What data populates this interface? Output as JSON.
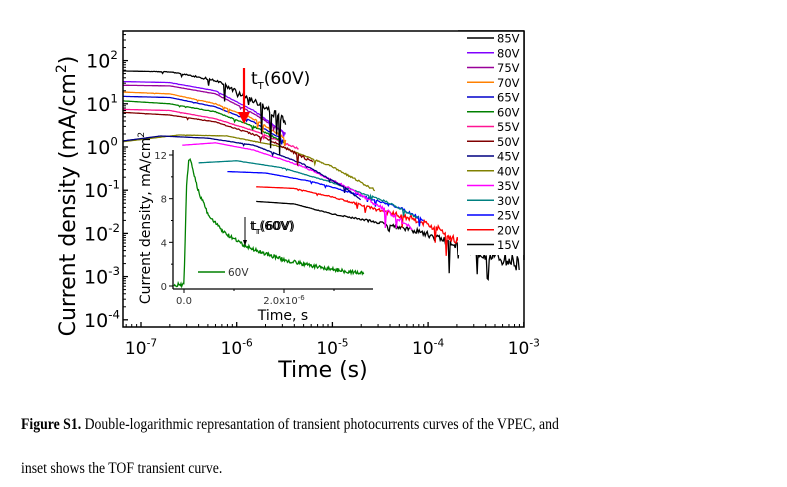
{
  "chart_data": [
    {
      "id": "main",
      "type": "line",
      "xscale": "log",
      "yscale": "log",
      "xlabel": "Time (s)",
      "ylabel": "Current density (mA/cm",
      "ylabel_sup": "2",
      "ylabel_tail": ")",
      "xlim": [
        5e-08,
        0.001
      ],
      "ylim": [
        6e-05,
        300.0
      ],
      "x_ticks": [
        {
          "base": "10",
          "exp": "-7",
          "value": 1e-07
        },
        {
          "base": "10",
          "exp": "-6",
          "value": 1e-06
        },
        {
          "base": "10",
          "exp": "-5",
          "value": 1e-05
        },
        {
          "base": "10",
          "exp": "-4",
          "value": 0.0001
        },
        {
          "base": "10",
          "exp": "-3",
          "value": 0.001
        }
      ],
      "y_ticks": [
        {
          "base": "10",
          "exp": "2",
          "value": 100
        },
        {
          "base": "10",
          "exp": "1",
          "value": 10
        },
        {
          "base": "10",
          "exp": "0",
          "value": 1
        },
        {
          "base": "10",
          "exp": "-1",
          "value": 0.1
        },
        {
          "base": "10",
          "exp": "-2",
          "value": 0.01
        },
        {
          "base": "10",
          "exp": "-3",
          "value": 0.001
        },
        {
          "base": "10",
          "exp": "-4",
          "value": 0.0001
        }
      ],
      "legend_position": "top-right",
      "series": [
        {
          "name": "85V",
          "color": "#000000",
          "noise": 0.35,
          "points": [
            [
              5.3e-08,
              58
            ],
            [
              2e-07,
              55
            ],
            [
              6e-07,
              35
            ],
            [
              1.5e-06,
              12
            ],
            [
              3.3e-06,
              4
            ]
          ]
        },
        {
          "name": "80V",
          "color": "#8000ff",
          "noise": 0.05,
          "points": [
            [
              5.3e-08,
              33
            ],
            [
              2e-07,
              31
            ],
            [
              6e-07,
              20
            ],
            [
              1.5e-06,
              7
            ],
            [
              3.3e-06,
              2
            ]
          ]
        },
        {
          "name": "75V",
          "color": "#990099",
          "noise": 0.05,
          "points": [
            [
              5.3e-08,
              27
            ],
            [
              2e-07,
              26
            ],
            [
              6e-07,
              17
            ],
            [
              1.5e-06,
              6
            ],
            [
              3.3e-06,
              2
            ]
          ]
        },
        {
          "name": "70V",
          "color": "#ff8000",
          "noise": 0.1,
          "points": [
            [
              5.3e-08,
              19
            ],
            [
              2e-07,
              17
            ],
            [
              6e-07,
              10
            ],
            [
              1.5e-06,
              4.5
            ],
            [
              3.3e-06,
              1.5
            ]
          ]
        },
        {
          "name": "65V",
          "color": "#0000cc",
          "noise": 0.05,
          "points": [
            [
              5.3e-08,
              15
            ],
            [
              2e-07,
              14
            ],
            [
              6e-07,
              8.5
            ],
            [
              1.5e-06,
              3.8
            ],
            [
              3.3e-06,
              1.3
            ]
          ]
        },
        {
          "name": "60V",
          "color": "#008000",
          "noise": 0.08,
          "points": [
            [
              5.3e-08,
              12
            ],
            [
              2e-07,
              10
            ],
            [
              6e-07,
              6.5
            ],
            [
              1.5e-06,
              3
            ],
            [
              3.3e-06,
              1.2
            ]
          ]
        },
        {
          "name": "55V",
          "color": "#ff1493",
          "noise": 0.06,
          "points": [
            [
              5.3e-08,
              7.5
            ],
            [
              2e-07,
              7
            ],
            [
              6e-07,
              4.5
            ],
            [
              1.5e-06,
              2.4
            ],
            [
              4.5e-06,
              0.9
            ]
          ]
        },
        {
          "name": "50V",
          "color": "#800000",
          "noise": 0.12,
          "points": [
            [
              5.3e-08,
              6.5
            ],
            [
              2e-07,
              5.5
            ],
            [
              6e-07,
              3.8
            ],
            [
              2e-06,
              1.6
            ],
            [
              6.3e-06,
              0.45
            ]
          ]
        },
        {
          "name": "45V",
          "color": "#000080",
          "noise": 0.06,
          "points": [
            [
              5.3e-08,
              1.3
            ],
            [
              1.6e-07,
              1.8
            ],
            [
              5e-07,
              1.6
            ],
            [
              1.5e-06,
              1.1
            ],
            [
              5e-06,
              0.4
            ],
            [
              1.3e-05,
              0.12
            ],
            [
              2e-05,
              0.06
            ]
          ]
        },
        {
          "name": "40V",
          "color": "#808000",
          "noise": 0.08,
          "points": [
            [
              6e-08,
              1.3
            ],
            [
              2.5e-07,
              1.9
            ],
            [
              8e-07,
              1.8
            ],
            [
              3e-06,
              1.0
            ],
            [
              1e-05,
              0.35
            ],
            [
              2.8e-05,
              0.1
            ]
          ]
        },
        {
          "name": "35V",
          "color": "#ff00ff",
          "noise": 0.2,
          "points": [
            [
              2.7e-07,
              1.1
            ],
            [
              6e-07,
              1.25
            ],
            [
              1.5e-06,
              0.85
            ],
            [
              5e-06,
              0.35
            ],
            [
              1.5e-05,
              0.11
            ],
            [
              4e-05,
              0.03
            ],
            [
              7e-05,
              0.012
            ]
          ]
        },
        {
          "name": "30V",
          "color": "#008080",
          "noise": 0.1,
          "points": [
            [
              4e-07,
              0.43
            ],
            [
              1e-06,
              0.48
            ],
            [
              3e-06,
              0.33
            ],
            [
              1e-05,
              0.15
            ],
            [
              4e-05,
              0.05
            ],
            [
              8e-05,
              0.022
            ]
          ]
        },
        {
          "name": "25V",
          "color": "#0000ff",
          "noise": 0.12,
          "points": [
            [
              8e-07,
              0.27
            ],
            [
              2e-06,
              0.25
            ],
            [
              6e-06,
              0.16
            ],
            [
              1.5e-05,
              0.09
            ],
            [
              5e-05,
              0.04
            ],
            [
              9e-05,
              0.02
            ]
          ]
        },
        {
          "name": "20V",
          "color": "#ff0000",
          "noise": 0.4,
          "points": [
            [
              1.6e-06,
              0.12
            ],
            [
              4e-06,
              0.11
            ],
            [
              1e-05,
              0.07
            ],
            [
              3e-05,
              0.035
            ],
            [
              8e-05,
              0.02
            ],
            [
              0.00013,
              0.012
            ],
            [
              0.00022,
              0.006
            ]
          ]
        },
        {
          "name": "15V",
          "color": "#000000",
          "noise": 0.6,
          "points": [
            [
              1.6e-06,
              0.055
            ],
            [
              4e-06,
              0.048
            ],
            [
              1e-05,
              0.028
            ],
            [
              3e-05,
              0.018
            ],
            [
              8e-05,
              0.011
            ],
            [
              0.00015,
              0.007
            ],
            [
              0.0003,
              0.004
            ],
            [
              0.0009,
              0.002
            ]
          ]
        }
      ],
      "annotation": {
        "label_main": "t",
        "label_sub": "T",
        "label_tail": "(60V)",
        "arrow_color": "#ff0000",
        "x": 1.2e-06,
        "y_start": 45,
        "y_end": 2.5
      }
    },
    {
      "id": "inset",
      "type": "line",
      "xscale": "linear",
      "yscale": "linear",
      "xlabel": "Time, s",
      "ylabel": "Current density, mA/cm",
      "ylabel_sup": "2",
      "xlim": [
        -2.2e-07,
        3.8e-06
      ],
      "ylim": [
        -0.3,
        13
      ],
      "x_ticks": [
        {
          "label": "0.0",
          "value": 0
        },
        {
          "label": "2.0x10",
          "sup": "-6",
          "value": 2e-06
        }
      ],
      "y_ticks": [
        {
          "label": "0",
          "value": 0
        },
        {
          "label": "4",
          "value": 4
        },
        {
          "label": "8",
          "value": 8
        },
        {
          "label": "12",
          "value": 12
        }
      ],
      "series": [
        {
          "name": "60V",
          "color": "#008000",
          "points": [
            [
              -2e-07,
              0.1
            ],
            [
              -1e-08,
              0.1
            ],
            [
              0,
              0.2
            ],
            [
              5e-08,
              9
            ],
            [
              1e-07,
              11.8
            ],
            [
              1.6e-07,
              11
            ],
            [
              3e-07,
              8.5
            ],
            [
              5e-07,
              6.4
            ],
            [
              8e-07,
              4.9
            ],
            [
              1.2e-06,
              3.7
            ],
            [
              1.6e-06,
              3.0
            ],
            [
              2e-06,
              2.4
            ],
            [
              2.5e-06,
              1.9
            ],
            [
              3e-06,
              1.5
            ],
            [
              3.6e-06,
              1.15
            ]
          ]
        }
      ],
      "legend": [
        {
          "name": "60V",
          "color": "#008000"
        }
      ],
      "annotation": {
        "label_main": "t",
        "label_sub": "T",
        "label_tail": "(60V)",
        "arrow_color": "#000000",
        "x": 1.2e-06,
        "y_start": 7.6,
        "y_end": 3.6
      }
    }
  ],
  "caption": {
    "bold": "Figure S1.",
    "line1": " Double-logarithmic represantation of transient photocurrents curves of the VPEC, and",
    "line2": "inset shows the TOF transient curve."
  }
}
